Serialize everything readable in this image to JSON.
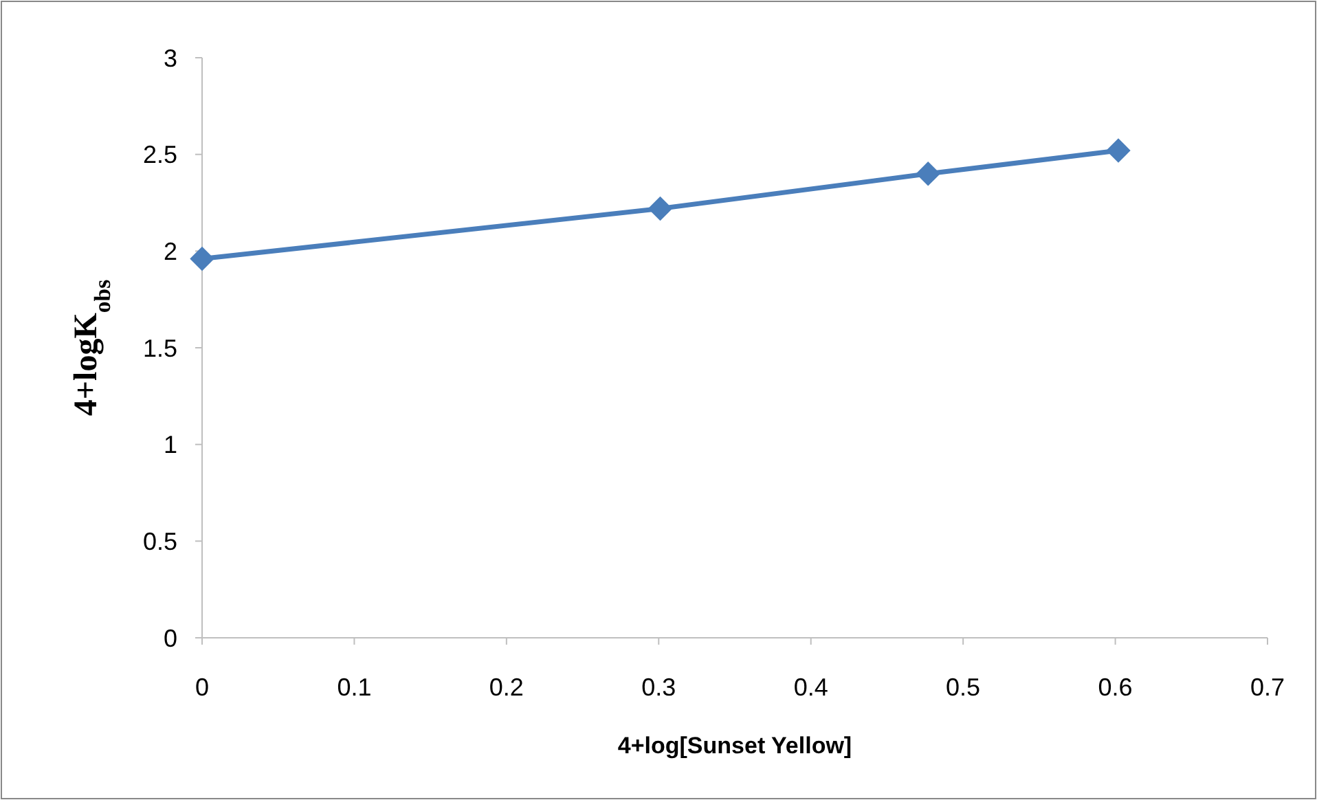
{
  "chart_data": {
    "type": "line",
    "xlabel": "4+log[Sunset Yellow]",
    "ylabel": "4+logK$_{obs}$",
    "x": [
      0,
      0.301,
      0.477,
      0.602
    ],
    "series": [
      {
        "color": "#4a7ebb",
        "values": [
          1.96,
          2.22,
          2.4,
          2.52
        ]
      }
    ],
    "xlim": [
      0,
      0.7
    ],
    "xticks": [
      0,
      0.1,
      0.2,
      0.3,
      0.4,
      0.5,
      0.6,
      0.7
    ],
    "ylim": [
      0,
      3
    ],
    "yticks": [
      0,
      0.5,
      1,
      1.5,
      2,
      2.5,
      3
    ],
    "grid": false,
    "marker": "diamond",
    "line_style": "solid"
  }
}
